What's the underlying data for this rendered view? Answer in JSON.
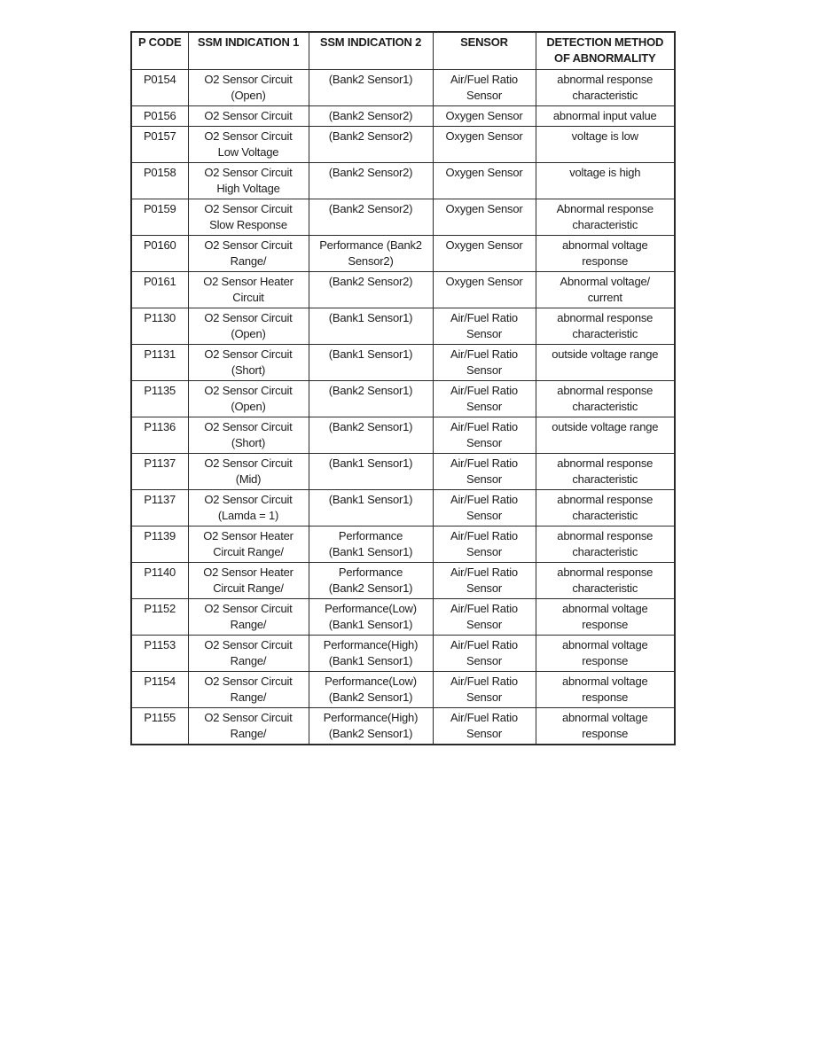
{
  "page": {
    "background_color": "#ffffff",
    "text_color": "#1c1c1c",
    "border_color": "#2a2a2a"
  },
  "table": {
    "headers": [
      "P CODE",
      "SSM INDICATION 1",
      "SSM INDICATION 2",
      "SENSOR",
      "DETECTION METHOD\nOF ABNORMALITY"
    ],
    "rows": [
      [
        "P0154",
        "O2 Sensor Circuit\n(Open)",
        "(Bank2 Sensor1)",
        "Air/Fuel Ratio\nSensor",
        "abnormal response\ncharacteristic"
      ],
      [
        "P0156",
        "O2 Sensor Circuit",
        "(Bank2 Sensor2)",
        "Oxygen Sensor",
        "abnormal input value"
      ],
      [
        "P0157",
        "O2 Sensor Circuit\nLow Voltage",
        "(Bank2 Sensor2)",
        "Oxygen Sensor",
        "voltage is low"
      ],
      [
        "P0158",
        "O2 Sensor Circuit\nHigh Voltage",
        "(Bank2 Sensor2)",
        "Oxygen Sensor",
        "voltage is high"
      ],
      [
        "P0159",
        "O2 Sensor Circuit\nSlow Response",
        "(Bank2 Sensor2)",
        "Oxygen Sensor",
        "Abnormal response\ncharacteristic"
      ],
      [
        "P0160",
        "O2 Sensor Circuit\nRange/",
        "Performance (Bank2\nSensor2)",
        "Oxygen Sensor",
        "abnormal voltage\nresponse"
      ],
      [
        "P0161",
        "O2 Sensor Heater\nCircuit",
        "(Bank2 Sensor2)",
        "Oxygen Sensor",
        "Abnormal voltage/\ncurrent"
      ],
      [
        "P1130",
        "O2 Sensor Circuit\n(Open)",
        "(Bank1 Sensor1)",
        "Air/Fuel Ratio\nSensor",
        "abnormal response\ncharacteristic"
      ],
      [
        "P1131",
        "O2 Sensor Circuit\n(Short)",
        "(Bank1 Sensor1)",
        "Air/Fuel Ratio\nSensor",
        "outside voltage range"
      ],
      [
        "P1135",
        "O2 Sensor Circuit\n(Open)",
        "(Bank2 Sensor1)",
        "Air/Fuel Ratio\nSensor",
        "abnormal response\ncharacteristic"
      ],
      [
        "P1136",
        "O2 Sensor Circuit\n(Short)",
        "(Bank2 Sensor1)",
        "Air/Fuel Ratio\nSensor",
        "outside voltage range"
      ],
      [
        "P1137",
        "O2 Sensor Circuit\n(Mid)",
        "(Bank1 Sensor1)",
        "Air/Fuel Ratio\nSensor",
        "abnormal response\ncharacteristic"
      ],
      [
        "P1137",
        "O2 Sensor Circuit\n(Lamda = 1)",
        "(Bank1 Sensor1)",
        "Air/Fuel Ratio\nSensor",
        "abnormal response\ncharacteristic"
      ],
      [
        "P1139",
        "O2 Sensor Heater\nCircuit Range/",
        "Performance\n(Bank1 Sensor1)",
        "Air/Fuel Ratio\nSensor",
        "abnormal response\ncharacteristic"
      ],
      [
        "P1140",
        "O2 Sensor Heater\nCircuit Range/",
        "Performance\n(Bank2 Sensor1)",
        "Air/Fuel Ratio\nSensor",
        "abnormal response\ncharacteristic"
      ],
      [
        "P1152",
        "O2 Sensor Circuit\nRange/",
        "Performance(Low)\n(Bank1 Sensor1)",
        "Air/Fuel Ratio\nSensor",
        "abnormal voltage\nresponse"
      ],
      [
        "P1153",
        "O2 Sensor Circuit\nRange/",
        "Performance(High)\n(Bank1 Sensor1)",
        "Air/Fuel Ratio\nSensor",
        "abnormal voltage\nresponse"
      ],
      [
        "P1154",
        "O2 Sensor Circuit\nRange/",
        "Performance(Low)\n(Bank2 Sensor1)",
        "Air/Fuel Ratio\nSensor",
        "abnormal voltage\nresponse"
      ],
      [
        "P1155",
        "O2 Sensor Circuit\nRange/",
        "Performance(High)\n(Bank2 Sensor1)",
        "Air/Fuel Ratio\nSensor",
        "abnormal voltage\nresponse"
      ]
    ]
  }
}
